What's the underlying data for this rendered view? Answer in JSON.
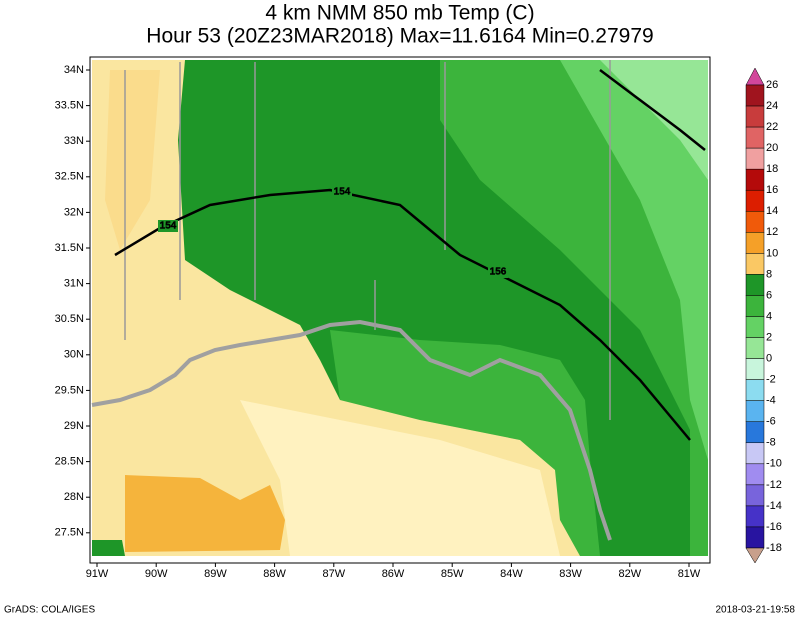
{
  "header": {
    "title_line1": "4 km NMM 850 mb Temp (C)",
    "title_line2": "Hour 53 (20Z23MAR2018) Max=11.6164 Min=0.27979"
  },
  "map": {
    "lat_labels": [
      "34N",
      "33.5N",
      "33N",
      "32.5N",
      "32N",
      "31.5N",
      "31N",
      "30.5N",
      "30N",
      "29.5N",
      "29N",
      "28.5N",
      "28N",
      "27.5N"
    ],
    "lon_labels": [
      "91W",
      "90W",
      "89W",
      "88W",
      "87W",
      "86W",
      "85W",
      "84W",
      "83W",
      "82W",
      "81W"
    ],
    "contour_labels": [
      "154",
      "154",
      "156"
    ]
  },
  "colorbar": {
    "labels": [
      "26",
      "24",
      "22",
      "20",
      "18",
      "16",
      "14",
      "12",
      "10",
      "8",
      "6",
      "4",
      "2",
      "0",
      "-2",
      "-4",
      "-6",
      "-8",
      "-10",
      "-12",
      "-14",
      "-16",
      "-18"
    ],
    "colors": [
      "#d2469b",
      "#a0141e",
      "#c83c3c",
      "#e06464",
      "#f0a0a0",
      "#b40a0a",
      "#dc1e00",
      "#f05a0a",
      "#f5a028",
      "#fac864",
      "#1e9628",
      "#3cb43c",
      "#64d264",
      "#96e696",
      "#c8f5dc",
      "#8cdcf0",
      "#5ab4f0",
      "#2878dc",
      "#c8c8f5",
      "#a08cf0",
      "#7864dc",
      "#4632c8",
      "#2814a0",
      "#c8a08c"
    ]
  },
  "footer": {
    "left": "GrADS: COLA/IGES",
    "right": "2018-03-21-19:58"
  }
}
